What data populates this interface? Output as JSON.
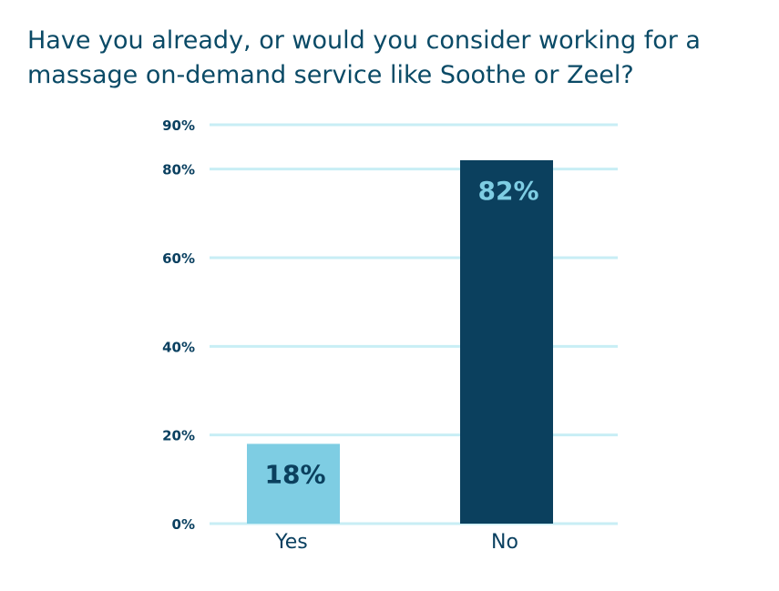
{
  "chart_data": {
    "type": "bar",
    "title": "Have you already, or would you consider working for a massage on-demand service like Soothe or Zeel?",
    "categories": [
      "Yes",
      "No"
    ],
    "values": [
      18,
      82
    ],
    "data_labels": [
      "18%",
      "82%"
    ],
    "ylim": [
      0,
      90
    ],
    "yticks": [
      0,
      20,
      40,
      60,
      80,
      90
    ],
    "ytick_labels": [
      "0%",
      "20%",
      "40%",
      "60%",
      "80%",
      "90%"
    ],
    "grid": true,
    "legend": "none",
    "colors": {
      "bars": [
        "#7ecde3",
        "#0b405e"
      ],
      "data_labels": [
        "#0b405e",
        "#7ecde3"
      ],
      "gridlines": "#c8eef5",
      "text": "#0a4060"
    }
  }
}
